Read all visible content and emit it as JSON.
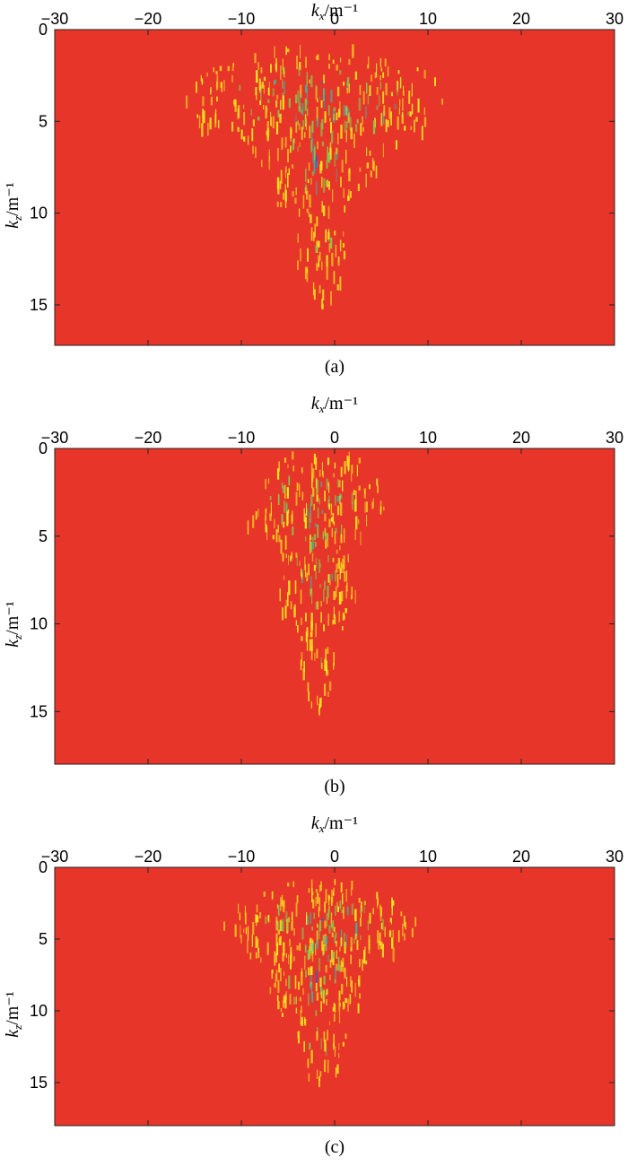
{
  "chart_data": [
    {
      "type": "heatmap",
      "panel": "(a)",
      "xlabel": "k_x/m⁻¹",
      "xlabel_main": "k",
      "xlabel_sub": "x",
      "xlabel_unit": "/m⁻¹",
      "ylabel": "k_z/m⁻¹",
      "ylabel_main": "k",
      "ylabel_sub": "z",
      "ylabel_unit": "/m⁻¹",
      "xlim": [
        -30,
        30
      ],
      "ylim": [
        0,
        17.2
      ],
      "x_ticks": [
        -30,
        -20,
        -10,
        0,
        10,
        20,
        30
      ],
      "x_tick_labels": [
        "−30",
        "−20",
        "−10",
        "0",
        "10",
        "20",
        "30"
      ],
      "y_ticks": [
        0,
        5,
        10,
        15
      ],
      "y_tick_labels": [
        "0",
        "5",
        "10",
        "15"
      ],
      "x_axis_position": "top",
      "y_axis_reversed": true,
      "background_color": "#e8352a",
      "colors": [
        "#e8352a",
        "#f6e51f",
        "#86c84a",
        "#3fb0a0",
        "#3a5bc8"
      ],
      "blobs": [
        {
          "x": -2,
          "z": 3.8,
          "wx": 11,
          "wz": 2.4,
          "level": 0.85
        },
        {
          "x": -1.5,
          "z": 6.5,
          "wx": 5,
          "wz": 3.5,
          "level": 0.8
        },
        {
          "x": -1.5,
          "z": 11,
          "wx": 2.5,
          "wz": 3.5,
          "level": 0.55
        },
        {
          "x": 4,
          "z": 4,
          "wx": 6,
          "wz": 1.8,
          "level": 0.7
        },
        {
          "x": -2,
          "z": 3.5,
          "wx": 3,
          "wz": 2,
          "level": 1.0
        }
      ]
    },
    {
      "type": "heatmap",
      "panel": "(b)",
      "xlabel": "k_x/m⁻¹",
      "xlabel_main": "k",
      "xlabel_sub": "x",
      "xlabel_unit": "/m⁻¹",
      "ylabel": "k_z/m⁻¹",
      "ylabel_main": "k",
      "ylabel_sub": "z",
      "ylabel_unit": "/m⁻¹",
      "xlim": [
        -30,
        30
      ],
      "ylim": [
        0,
        18
      ],
      "x_ticks": [
        -30,
        -20,
        -10,
        0,
        10,
        20,
        30
      ],
      "x_tick_labels": [
        "−30",
        "−20",
        "−10",
        "0",
        "10",
        "20",
        "30"
      ],
      "y_ticks": [
        0,
        5,
        10,
        15
      ],
      "y_tick_labels": [
        "0",
        "5",
        "10",
        "15"
      ],
      "x_axis_position": "top",
      "y_axis_reversed": true,
      "background_color": "#e8352a",
      "colors": [
        "#e8352a",
        "#f6e51f",
        "#86c84a",
        "#3fb0a0",
        "#3a5bc8"
      ],
      "blobs": [
        {
          "x": -2,
          "z": 3,
          "wx": 6,
          "wz": 2.5,
          "level": 0.8
        },
        {
          "x": -2,
          "z": 7,
          "wx": 3.5,
          "wz": 3.5,
          "level": 0.75
        },
        {
          "x": -2,
          "z": 12,
          "wx": 2,
          "wz": 3,
          "level": 0.5
        },
        {
          "x": -2,
          "z": 4,
          "wx": 1.2,
          "wz": 3,
          "level": 1.0
        }
      ]
    },
    {
      "type": "heatmap",
      "panel": "(c)",
      "xlabel": "k_x/m⁻¹",
      "xlabel_main": "k",
      "xlabel_sub": "x",
      "xlabel_unit": "/m⁻¹",
      "ylabel": "k_z/m⁻¹",
      "ylabel_main": "k",
      "ylabel_sub": "z",
      "ylabel_unit": "/m⁻¹",
      "xlim": [
        -30,
        30
      ],
      "ylim": [
        0,
        18
      ],
      "x_ticks": [
        -30,
        -20,
        -10,
        0,
        10,
        20,
        30
      ],
      "x_tick_labels": [
        "−30",
        "−20",
        "−10",
        "0",
        "10",
        "20",
        "30"
      ],
      "y_ticks": [
        0,
        5,
        10,
        15
      ],
      "y_tick_labels": [
        "0",
        "5",
        "10",
        "15"
      ],
      "x_axis_position": "top",
      "y_axis_reversed": true,
      "background_color": "#e8352a",
      "colors": [
        "#e8352a",
        "#f6e51f",
        "#86c84a",
        "#3fb0a0",
        "#3a5bc8"
      ],
      "blobs": [
        {
          "x": -1.5,
          "z": 3.8,
          "wx": 8,
          "wz": 2.4,
          "level": 0.85
        },
        {
          "x": -2,
          "z": 7,
          "wx": 4.5,
          "wz": 3.5,
          "level": 0.8
        },
        {
          "x": -1.5,
          "z": 11.5,
          "wx": 2.5,
          "wz": 3.5,
          "level": 0.5
        },
        {
          "x": -2,
          "z": 3.5,
          "wx": 2,
          "wz": 2,
          "level": 1.0
        }
      ]
    }
  ]
}
